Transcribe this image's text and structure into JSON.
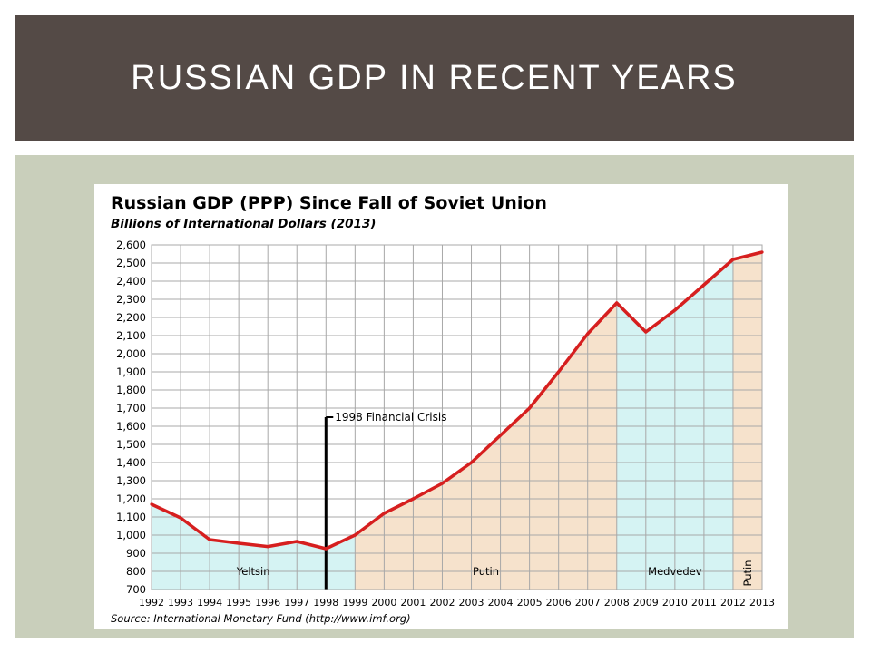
{
  "slide": {
    "title": "RUSSIAN GDP IN RECENT YEARS"
  },
  "colors": {
    "header_bg": "#544a46",
    "panel_bg": "#c9cfbb",
    "line": "#d61f1f",
    "fill_blue": "#d5f3f3",
    "fill_tan": "#f6e2cc",
    "grid": "#a8a8a8"
  },
  "chart_data": {
    "type": "line",
    "title": "Russian GDP (PPP) Since Fall of Soviet Union",
    "subtitle": "Billions of International Dollars (2013)",
    "source": "Source: International Monetary Fund (http://www.imf.org)",
    "x": [
      "1992",
      "1993",
      "1994",
      "1995",
      "1996",
      "1997",
      "1998",
      "1999",
      "2000",
      "2001",
      "2002",
      "2003",
      "2004",
      "2005",
      "2006",
      "2007",
      "2008",
      "2009",
      "2010",
      "2011",
      "2012",
      "2013"
    ],
    "y_ticks": [
      "700",
      "800",
      "900",
      "1,000",
      "1,100",
      "1,200",
      "1,300",
      "1,400",
      "1,500",
      "1,600",
      "1,700",
      "1,800",
      "1,900",
      "2,000",
      "2,100",
      "2,200",
      "2,300",
      "2,400",
      "2,500",
      "2,600"
    ],
    "ylim": [
      700,
      2600
    ],
    "grid": true,
    "series": [
      {
        "values": [
          1170,
          1095,
          975,
          955,
          937,
          965,
          925,
          1000,
          1120,
          1200,
          1285,
          1400,
          1550,
          1700,
          1900,
          2110,
          2280,
          2120,
          2240,
          2380,
          2520,
          2560
        ]
      }
    ],
    "periods": [
      {
        "label": "Yeltsin",
        "start": "1992",
        "end": "1999",
        "fill": "blue"
      },
      {
        "label": "Putin",
        "start": "1999",
        "end": "2008",
        "fill": "tan"
      },
      {
        "label": "Medvedev",
        "start": "2008",
        "end": "2012",
        "fill": "blue"
      },
      {
        "label": "Putin",
        "start": "2012",
        "end": "2013",
        "fill": "tan",
        "vertical": true
      }
    ],
    "annotation": {
      "text": "1998 Financial Crisis",
      "x": "1998",
      "y_top": 1650
    }
  }
}
